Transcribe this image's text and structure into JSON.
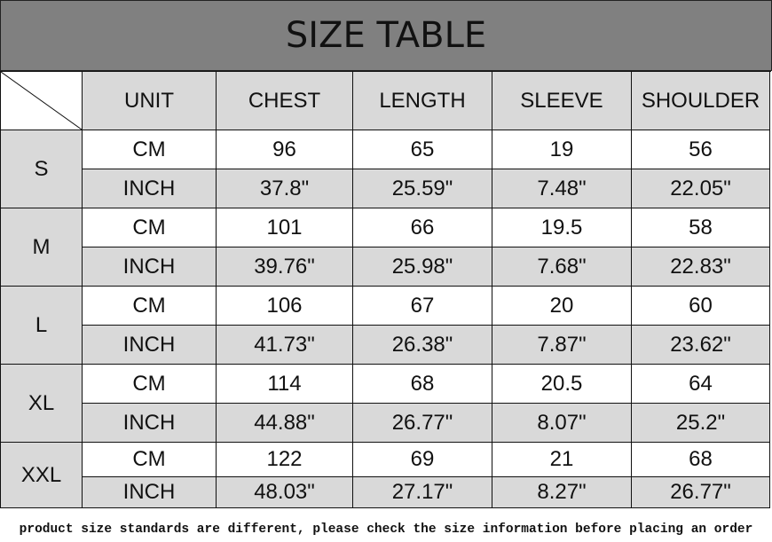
{
  "title": "SIZE TABLE",
  "headers": [
    "UNIT",
    "CHEST",
    "LENGTH",
    "SLEEVE",
    "SHOULDER"
  ],
  "rows": [
    {
      "size": "S",
      "cm": [
        "CM",
        "96",
        "65",
        "19",
        "56"
      ],
      "inch": [
        "INCH",
        "37.8\"",
        "25.59\"",
        "7.48\"",
        "22.05\""
      ]
    },
    {
      "size": "M",
      "cm": [
        "CM",
        "101",
        "66",
        "19.5",
        "58"
      ],
      "inch": [
        "INCH",
        "39.76\"",
        "25.98\"",
        "7.68\"",
        "22.83\""
      ]
    },
    {
      "size": "L",
      "cm": [
        "CM",
        "106",
        "67",
        "20",
        "60"
      ],
      "inch": [
        "INCH",
        "41.73\"",
        "26.38\"",
        "7.87\"",
        "23.62\""
      ]
    },
    {
      "size": "XL",
      "cm": [
        "CM",
        "114",
        "68",
        "20.5",
        "64"
      ],
      "inch": [
        "INCH",
        "44.88\"",
        "26.77\"",
        "8.07\"",
        "25.2\""
      ]
    },
    {
      "size": "XXL",
      "cm": [
        "CM",
        "122",
        "69",
        "21",
        "68"
      ],
      "inch": [
        "INCH",
        "48.03\"",
        "27.17\"",
        "8.27\"",
        "26.77\""
      ]
    }
  ],
  "note": "product size standards are different, please check the size information before placing an order",
  "colors": {
    "title_bg": "#808080",
    "shaded": "#d9d9d9"
  }
}
